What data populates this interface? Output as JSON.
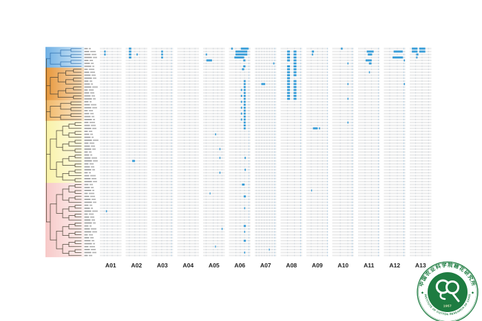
{
  "figure": {
    "kind": "phylogenetic-tree-with-chromosome-heatmap",
    "background": "#ffffff"
  },
  "chart_data": {
    "type": "heatmap",
    "title": "",
    "description": "Dendrogram of 71 cotton accessions grouped into 5 colored clades (blue, dark orange, light orange, yellow, pink) beside a per-accession chromosome map for A01-A13; light gray bars are chromosomes with faint marker columns, blue segments mark highlighted (introgression) regions.",
    "rows": 71,
    "chromosomes": [
      "A01",
      "A02",
      "A03",
      "A04",
      "A05",
      "A06",
      "A07",
      "A08",
      "A09",
      "A10",
      "A11",
      "A12",
      "A13"
    ],
    "clades": [
      {
        "name": "clade-blue",
        "leaf_count": 7,
        "band_left": "#6fb0e4",
        "band_right": "#d9ebf8",
        "line_color": "#2e6fae"
      },
      {
        "name": "clade-dark-orange",
        "leaf_count": 11,
        "band_left": "#e79638",
        "band_right": "#f7ddbd",
        "line_color": "#4a4336"
      },
      {
        "name": "clade-light-orange",
        "leaf_count": 7,
        "band_left": "#f1b765",
        "band_right": "#fbead2",
        "line_color": "#4a4336"
      },
      {
        "name": "clade-yellow",
        "leaf_count": 21,
        "band_left": "#f9f2a6",
        "band_right": "#fefce9",
        "line_color": "#4a4336"
      },
      {
        "name": "clade-pink",
        "leaf_count": 25,
        "band_left": "#f7c9c8",
        "band_right": "#fdf1f0",
        "line_color": "#4a4336"
      }
    ],
    "marker_ticks": {
      "A01": [
        0.18,
        0.32,
        0.55,
        0.8
      ],
      "A02": [
        0.15,
        0.4,
        0.62,
        0.85
      ],
      "A03": [
        0.2,
        0.45,
        0.7,
        0.9
      ],
      "A04": [
        0.3,
        0.55,
        0.8
      ],
      "A05": [
        0.12,
        0.45,
        0.65,
        0.85
      ],
      "A06": [
        0.3,
        0.5,
        0.7,
        0.9
      ],
      "A07": [
        0.06,
        0.18,
        0.3,
        0.42,
        0.54,
        0.66,
        0.78,
        0.9
      ],
      "A08": [
        0.3,
        0.62,
        0.9
      ],
      "A09": [
        0.2,
        0.5,
        0.72,
        0.95
      ],
      "A10": [
        0.35,
        0.7,
        0.9
      ],
      "A11": [
        0.3,
        0.6,
        0.92
      ],
      "A12": [
        0.25,
        0.6,
        0.9
      ],
      "A13": [
        0.25,
        0.55,
        0.85
      ]
    },
    "segments": [
      {
        "chrom": "A01",
        "x": 0.2,
        "w": 0.07,
        "rows": [
          1,
          2
        ]
      },
      {
        "chrom": "A01",
        "x": 0.28,
        "w": 0.05,
        "rows": [
          55
        ]
      },
      {
        "chrom": "A02",
        "x": 0.15,
        "w": 0.11,
        "rows": [
          0,
          1,
          2,
          3
        ]
      },
      {
        "chrom": "A02",
        "x": 0.5,
        "w": 0.06,
        "rows": [
          2
        ]
      },
      {
        "chrom": "A02",
        "x": 0.3,
        "w": 0.13,
        "rows": [
          38
        ]
      },
      {
        "chrom": "A03",
        "x": 0.45,
        "w": 0.08,
        "rows": [
          1,
          2,
          3
        ]
      },
      {
        "chrom": "A05",
        "x": 0.12,
        "w": 0.06,
        "rows": [
          2
        ]
      },
      {
        "chrom": "A05",
        "x": 0.15,
        "w": 0.26,
        "rows": [
          4
        ]
      },
      {
        "chrom": "A05",
        "x": 0.55,
        "w": 0.05,
        "rows": [
          29
        ]
      },
      {
        "chrom": "A05",
        "x": 0.75,
        "w": 0.05,
        "rows": [
          34,
          37,
          42
        ]
      },
      {
        "chrom": "A05",
        "x": 0.3,
        "w": 0.04,
        "rows": [
          49
        ]
      },
      {
        "chrom": "A05",
        "x": 0.85,
        "w": 0.05,
        "rows": [
          61
        ]
      },
      {
        "chrom": "A05",
        "x": 0.55,
        "w": 0.04,
        "rows": [
          67
        ]
      },
      {
        "chrom": "A06",
        "x": 0.1,
        "w": 0.08,
        "rows": [
          0
        ]
      },
      {
        "chrom": "A06",
        "x": 0.55,
        "w": 0.35,
        "rows": [
          0
        ]
      },
      {
        "chrom": "A06",
        "x": 0.3,
        "w": 0.55,
        "rows": [
          1,
          2
        ]
      },
      {
        "chrom": "A06",
        "x": 0.25,
        "w": 0.45,
        "rows": [
          3
        ]
      },
      {
        "chrom": "A06",
        "x": 0.66,
        "w": 0.1,
        "rows": [
          4,
          6
        ]
      },
      {
        "chrom": "A06",
        "x": 0.6,
        "w": 0.1,
        "rows": [
          7
        ]
      },
      {
        "chrom": "A06",
        "x": 0.68,
        "w": 0.09,
        "rows": [
          11,
          12,
          13,
          14,
          15,
          16,
          17,
          18,
          19,
          20,
          21,
          22,
          23,
          24,
          25,
          26,
          27
        ]
      },
      {
        "chrom": "A06",
        "x": 0.55,
        "w": 0.06,
        "rows": [
          14,
          16,
          18,
          20,
          22,
          24
        ]
      },
      {
        "chrom": "A06",
        "x": 0.72,
        "w": 0.06,
        "rows": [
          37,
          41
        ]
      },
      {
        "chrom": "A06",
        "x": 0.6,
        "w": 0.12,
        "rows": [
          46
        ]
      },
      {
        "chrom": "A06",
        "x": 0.68,
        "w": 0.1,
        "rows": [
          50,
          60,
          65
        ]
      },
      {
        "chrom": "A06",
        "x": 0.7,
        "w": 0.05,
        "rows": [
          54,
          62,
          69
        ]
      },
      {
        "chrom": "A07",
        "x": 0.85,
        "w": 0.05,
        "rows": [
          5
        ]
      },
      {
        "chrom": "A07",
        "x": 0.3,
        "w": 0.18,
        "rows": [
          12
        ]
      },
      {
        "chrom": "A07",
        "x": 0.65,
        "w": 0.04,
        "rows": [
          68
        ]
      },
      {
        "chrom": "A08",
        "x": 0.3,
        "w": 0.13,
        "rows": [
          1,
          2,
          3,
          4,
          6,
          7,
          8,
          9,
          10,
          11,
          12,
          13,
          14,
          15,
          16,
          17
        ]
      },
      {
        "chrom": "A08",
        "x": 0.6,
        "w": 0.13,
        "rows": [
          1,
          2,
          3,
          4,
          5,
          6,
          7,
          8,
          9,
          11,
          12,
          13,
          14,
          15,
          16,
          17
        ]
      },
      {
        "chrom": "A09",
        "x": 0.25,
        "w": 0.1,
        "rows": [
          1
        ]
      },
      {
        "chrom": "A09",
        "x": 0.25,
        "w": 0.06,
        "rows": [
          2
        ]
      },
      {
        "chrom": "A09",
        "x": 0.3,
        "w": 0.22,
        "rows": [
          27
        ]
      },
      {
        "chrom": "A09",
        "x": 0.58,
        "w": 0.05,
        "rows": [
          27
        ]
      },
      {
        "chrom": "A09",
        "x": 0.22,
        "w": 0.04,
        "rows": [
          48
        ]
      },
      {
        "chrom": "A10",
        "x": 0.4,
        "w": 0.08,
        "rows": [
          0
        ]
      },
      {
        "chrom": "A10",
        "x": 0.7,
        "w": 0.05,
        "rows": [
          5,
          12,
          17,
          25
        ]
      },
      {
        "chrom": "A11",
        "x": 0.4,
        "w": 0.32,
        "rows": [
          1
        ]
      },
      {
        "chrom": "A11",
        "x": 0.45,
        "w": 0.2,
        "rows": [
          2
        ]
      },
      {
        "chrom": "A11",
        "x": 0.35,
        "w": 0.28,
        "rows": [
          4
        ]
      },
      {
        "chrom": "A11",
        "x": 0.5,
        "w": 0.12,
        "rows": [
          5
        ]
      },
      {
        "chrom": "A11",
        "x": 0.5,
        "w": 0.05,
        "rows": [
          8
        ]
      },
      {
        "chrom": "A12",
        "x": 0.45,
        "w": 0.42,
        "rows": [
          1
        ]
      },
      {
        "chrom": "A12",
        "x": 0.4,
        "w": 0.48,
        "rows": [
          3
        ]
      },
      {
        "chrom": "A12",
        "x": 0.92,
        "w": 0.05,
        "rows": [
          4,
          12
        ]
      },
      {
        "chrom": "A13",
        "x": 0.1,
        "w": 0.26,
        "rows": [
          0,
          1
        ]
      },
      {
        "chrom": "A13",
        "x": 0.44,
        "w": 0.28,
        "rows": [
          0,
          1
        ]
      },
      {
        "chrom": "A13",
        "x": 0.3,
        "w": 0.1,
        "rows": [
          2
        ]
      },
      {
        "chrom": "A13",
        "x": 0.3,
        "w": 0.06,
        "rows": [
          3
        ]
      }
    ],
    "colors": {
      "bar": "#ededed",
      "tick": "#d7dce1",
      "tick_blue": "#bcd4e6",
      "highlight": "#3a9ed8",
      "axis_label": "#222222",
      "leaf_label": "#8c8c8c"
    },
    "legend_position": "none",
    "grid": false
  },
  "logo": {
    "chinese": "中国农业科学院棉花研究所",
    "english": "INSTITUTE OF COTTON RESEARCH OF CAAS",
    "year": "1957",
    "color": "#1e7c41",
    "year_color": "#fbf3cd"
  }
}
